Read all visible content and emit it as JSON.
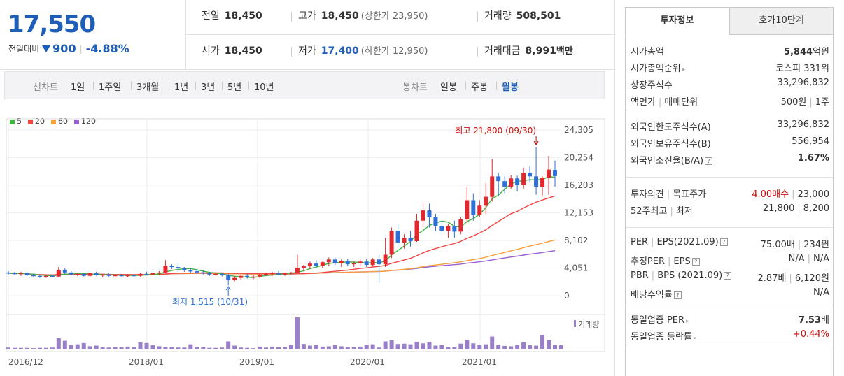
{
  "header": {
    "current_price": "17,550",
    "change_label": "전일대비",
    "change_value": "900",
    "change_pct": "-4.88%",
    "quote_row1": [
      {
        "label": "전일",
        "value": "18,450",
        "sub": ""
      },
      {
        "label": "고가",
        "value": "18,450",
        "sub": "(상한가 23,950)"
      },
      {
        "label": "거래량",
        "value": "508,501",
        "sub": ""
      }
    ],
    "quote_row2": [
      {
        "label": "시가",
        "value": "18,450",
        "sub": ""
      },
      {
        "label": "저가",
        "value": "17,400",
        "sub": "(하한가 12,950)"
      },
      {
        "label": "거래대금",
        "value": "8,991",
        "sub": "백만"
      }
    ]
  },
  "tabbar": {
    "line_head": "선차트",
    "line_items": [
      "1일",
      "1주일",
      "3개월",
      "1년",
      "3년",
      "5년",
      "10년"
    ],
    "candle_head": "봉차트",
    "candle_items": [
      "일봉",
      "주봉",
      "월봉"
    ],
    "candle_active": "월봉"
  },
  "chart_data": {
    "type": "candlestick",
    "legend": [
      {
        "name": "5",
        "color": "#3fb53f"
      },
      {
        "name": "20",
        "color": "#f04646"
      },
      {
        "name": "60",
        "color": "#f5a03c"
      },
      {
        "name": "120",
        "color": "#9b5fd6"
      }
    ],
    "y_ticks": [
      "24,305",
      "20,254",
      "16,203",
      "12,153",
      "8,102",
      "4,051",
      "0"
    ],
    "ylim": [
      0,
      24305
    ],
    "x_ticks": [
      "2016/12",
      "2018/01",
      "2019/01",
      "2020/01",
      "2021/01"
    ],
    "high_annotation": "최고 21,800 (09/30)",
    "low_annotation": "최저 1,515 (10/31)",
    "volume_label": "거래량",
    "up_color": "#e0282e",
    "down_color": "#2f6fd8",
    "candles": [
      [
        3400,
        3600,
        3100,
        3300
      ],
      [
        3300,
        3500,
        3000,
        3200
      ],
      [
        3200,
        3500,
        2900,
        3300
      ],
      [
        3300,
        3400,
        2900,
        3000
      ],
      [
        3000,
        3200,
        2700,
        2900
      ],
      [
        2900,
        3100,
        2600,
        2800
      ],
      [
        2800,
        3000,
        2600,
        2900
      ],
      [
        2900,
        3100,
        2700,
        2800
      ],
      [
        2800,
        4200,
        2700,
        3800
      ],
      [
        3800,
        4000,
        3200,
        3400
      ],
      [
        3400,
        3600,
        3000,
        3100
      ],
      [
        3100,
        3300,
        2900,
        3200
      ],
      [
        3200,
        3300,
        2800,
        2900
      ],
      [
        2900,
        3400,
        2800,
        3300
      ],
      [
        3300,
        3500,
        2900,
        3000
      ],
      [
        3000,
        3200,
        2700,
        3100
      ],
      [
        3100,
        3300,
        2800,
        2900
      ],
      [
        2900,
        3100,
        2700,
        3000
      ],
      [
        3000,
        3200,
        2800,
        2900
      ],
      [
        2900,
        3100,
        2700,
        3000
      ],
      [
        3000,
        3100,
        2800,
        2900
      ],
      [
        2900,
        3300,
        2800,
        3200
      ],
      [
        3200,
        3500,
        3000,
        3100
      ],
      [
        3100,
        3400,
        2900,
        3300
      ],
      [
        3300,
        3600,
        3000,
        3400
      ],
      [
        3400,
        5200,
        3300,
        4400
      ],
      [
        4400,
        4600,
        3900,
        4200
      ],
      [
        4200,
        4800,
        3500,
        4000
      ],
      [
        4000,
        4200,
        3500,
        3700
      ],
      [
        3700,
        4000,
        3300,
        3600
      ],
      [
        3600,
        3900,
        3200,
        3400
      ],
      [
        3400,
        3700,
        3100,
        3300
      ],
      [
        3300,
        3500,
        2900,
        3100
      ],
      [
        3100,
        3400,
        2900,
        3200
      ],
      [
        3200,
        3400,
        2800,
        3000
      ],
      [
        3000,
        3200,
        1515,
        2300
      ],
      [
        2300,
        2900,
        2100,
        2600
      ],
      [
        2600,
        3100,
        2300,
        2900
      ],
      [
        2900,
        3200,
        2500,
        2700
      ],
      [
        2700,
        3000,
        2400,
        2800
      ],
      [
        2800,
        3200,
        2600,
        3100
      ],
      [
        3100,
        3400,
        2900,
        3200
      ],
      [
        3200,
        3500,
        2900,
        3300
      ],
      [
        3300,
        3600,
        3000,
        3100
      ],
      [
        3100,
        3400,
        2900,
        3300
      ],
      [
        3300,
        3500,
        3100,
        3400
      ],
      [
        3400,
        6000,
        3300,
        4100
      ],
      [
        4100,
        4500,
        3600,
        4300
      ],
      [
        4300,
        5000,
        3900,
        4700
      ],
      [
        4700,
        5200,
        4100,
        4400
      ],
      [
        4400,
        5000,
        4000,
        4900
      ],
      [
        4900,
        5600,
        4300,
        5300
      ],
      [
        5300,
        5600,
        4500,
        4800
      ],
      [
        4800,
        5300,
        4200,
        5100
      ],
      [
        5100,
        5400,
        4300,
        4600
      ],
      [
        4600,
        5000,
        4200,
        4800
      ],
      [
        4800,
        5300,
        4400,
        5000
      ],
      [
        5000,
        5400,
        4200,
        4500
      ],
      [
        4500,
        5500,
        4300,
        5300
      ],
      [
        5300,
        6000,
        1900,
        4600
      ],
      [
        4600,
        8500,
        4200,
        6000
      ],
      [
        6000,
        10000,
        5500,
        9500
      ],
      [
        9500,
        10500,
        7200,
        7800
      ],
      [
        7800,
        9000,
        6900,
        8500
      ],
      [
        8500,
        9500,
        7200,
        8000
      ],
      [
        8000,
        12000,
        7900,
        11000
      ],
      [
        11000,
        13500,
        10000,
        12500
      ],
      [
        12500,
        13500,
        10000,
        11500
      ],
      [
        11500,
        12000,
        9500,
        10200
      ],
      [
        10200,
        11000,
        9200,
        9500
      ],
      [
        9500,
        10500,
        8500,
        10200
      ],
      [
        10200,
        11000,
        8500,
        9400
      ],
      [
        9400,
        11500,
        9000,
        11200
      ],
      [
        11200,
        16000,
        10800,
        14000
      ],
      [
        14000,
        15000,
        11000,
        11800
      ],
      [
        11800,
        14000,
        11500,
        13200
      ],
      [
        13200,
        16500,
        12000,
        14500
      ],
      [
        14500,
        20000,
        13800,
        17500
      ],
      [
        17500,
        18000,
        14600,
        16800
      ],
      [
        16800,
        17500,
        15000,
        16000
      ],
      [
        16000,
        17700,
        15600,
        17200
      ],
      [
        17200,
        17600,
        15300,
        16300
      ],
      [
        16300,
        18800,
        15700,
        18000
      ],
      [
        18000,
        19000,
        16600,
        17500
      ],
      [
        17500,
        21800,
        14800,
        16000
      ],
      [
        16000,
        17500,
        14700,
        17300
      ],
      [
        17300,
        20500,
        14800,
        18500
      ],
      [
        18450,
        19800,
        16000,
        17550
      ]
    ],
    "volume": [
      {
        "x": "2018-01",
        "v": 0.35
      },
      {
        "x": "2018-02",
        "v": 0.27
      },
      {
        "x": "2018-03",
        "v": 0.25
      }
    ],
    "volume_bars": [
      0.06,
      0.05,
      0.05,
      0.05,
      0.04,
      0.05,
      0.05,
      0.06,
      0.35,
      0.27,
      0.14,
      0.16,
      0.2,
      0.1,
      0.12,
      0.08,
      0.06,
      0.08,
      0.07,
      0.09,
      0.08,
      0.22,
      0.2,
      0.13,
      0.1,
      0.08,
      0.07,
      0.06,
      0.06,
      0.16,
      0.07,
      0.08,
      0.05,
      0.05,
      0.06,
      0.25,
      0.12,
      0.06,
      0.05,
      0.04,
      0.09,
      0.06,
      0.09,
      0.07,
      0.07,
      0.15,
      1.0,
      0.17,
      0.12,
      0.14,
      0.09,
      0.1,
      0.14,
      0.1,
      0.08,
      0.07,
      0.09,
      0.14,
      0.16,
      0.06,
      0.25,
      0.3,
      0.17,
      0.18,
      0.16,
      0.24,
      0.19,
      0.22,
      0.12,
      0.14,
      0.08,
      0.08,
      0.18,
      0.3,
      0.19,
      0.14,
      0.16,
      0.4,
      0.15,
      0.11,
      0.1,
      0.14,
      0.22,
      0.13,
      0.12,
      0.45,
      0.3,
      0.14,
      0.13
    ]
  },
  "right": {
    "tabs": [
      "투자정보",
      "호가10단계"
    ],
    "sec1": [
      {
        "k": "시가총액",
        "v": "5,844",
        "vunit": "억원",
        "bold": true
      },
      {
        "k": "시가총액순위",
        "v": "코스피 331위",
        "arrow": true
      },
      {
        "k": "상장주식수",
        "v": "33,296,832"
      },
      {
        "k": "액면가",
        "k2": "매매단위",
        "v": "500원",
        "v2": "1주"
      }
    ],
    "sec2": [
      {
        "k": "외국인한도주식수(A)",
        "v": "33,296,832"
      },
      {
        "k": "외국인보유주식수(B)",
        "v": "556,954"
      },
      {
        "k": "외국인소진율(B/A)",
        "v": "1.67%",
        "bold": true,
        "q": true
      }
    ],
    "sec3": [
      {
        "k": "투자의견",
        "k2": "목표주가",
        "v": "4.00매수",
        "v2": "23,000",
        "red": true
      },
      {
        "k": "52주최고",
        "k2": "최저",
        "v": "21,800",
        "v2": "8,200"
      }
    ],
    "sec4": [
      {
        "k": "PER",
        "k2": "EPS(2021.09)",
        "v": "75.00배",
        "v2": "234원",
        "q": true
      },
      {
        "k": "추정PER",
        "k2": "EPS",
        "v": "N/A",
        "v2": "N/A",
        "q": true
      },
      {
        "k": "PBR",
        "k2": "BPS (2021.09)",
        "v": "2.87배",
        "v2": "6,120원",
        "q": true
      },
      {
        "k": "배당수익률",
        "v": "N/A",
        "q": true
      }
    ],
    "sec5": [
      {
        "k": "동일업종 PER",
        "v": "7.53",
        "vunit": "배",
        "bold": true,
        "arrow": true
      },
      {
        "k": "동일업종 등락률",
        "v": "+0.44%",
        "red": true,
        "arrow": true
      }
    ]
  }
}
